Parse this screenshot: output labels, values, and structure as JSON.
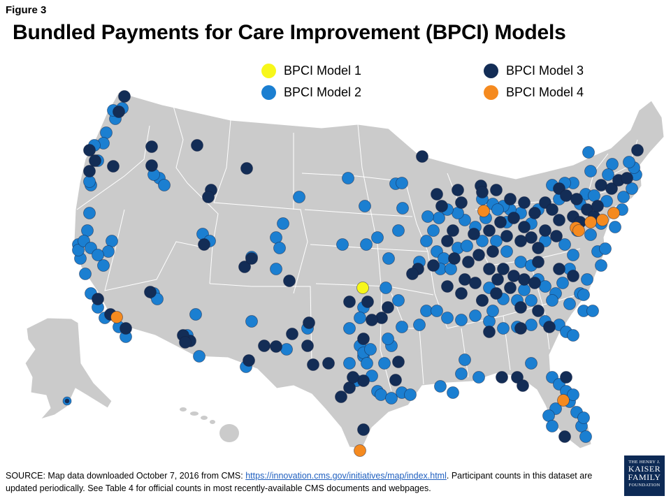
{
  "figure_label": "Figure 3",
  "title": "Bundled Payments for Care Improvement (BPCI) Models",
  "colors": {
    "model1": "#f7f71a",
    "model2": "#1b7fd1",
    "model3": "#132d56",
    "model4": "#f58a1f",
    "land": "#cbcbcb",
    "border": "#ffffff"
  },
  "legend": [
    {
      "key": "model1",
      "label": "BPCI Model 1"
    },
    {
      "key": "model2",
      "label": "BPCI Model 2"
    },
    {
      "key": "model3",
      "label": "BPCI Model 3"
    },
    {
      "key": "model4",
      "label": "BPCI Model 4"
    }
  ],
  "footer": {
    "source_prefix": "SOURCE: Map data downloaded October 7, 2016 from CMS: ",
    "source_link": "https://innovation.cms.gov/initiatives/map/index.html",
    "source_suffix": ".  Participant counts in this dataset are updated periodically. See Table 4 for official counts in most recently-available CMS documents  and webpages."
  },
  "logo": {
    "line1": "THE HENRY J.",
    "line2a": "KAISER",
    "line2b": "FAMILY",
    "line3": "FOUNDATION"
  }
}
